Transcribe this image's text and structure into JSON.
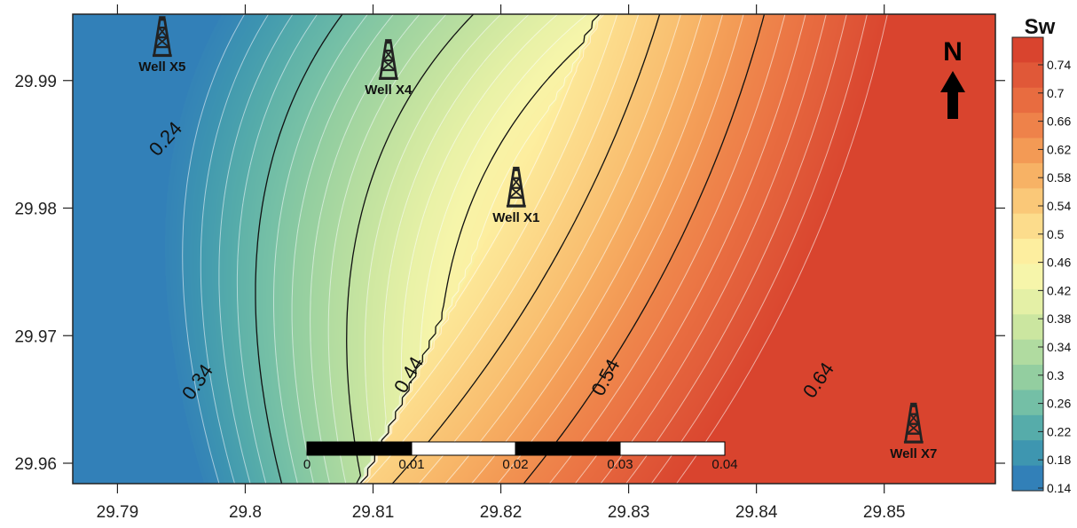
{
  "map": {
    "legend_title": "Sw",
    "north_label": "N",
    "x_ticks": [
      "29.79",
      "29.8",
      "29.81",
      "29.82",
      "29.83",
      "29.84",
      "29.85"
    ],
    "y_ticks": [
      "29.99",
      "29.98",
      "29.97",
      "29.96"
    ],
    "contour_labels": [
      "0.24",
      "0.34",
      "0.44",
      "0.54",
      "0.64"
    ],
    "wells": [
      {
        "name": "Well X5",
        "lon": 29.7935,
        "lat": 29.9915
      },
      {
        "name": "Well X4",
        "lon": 29.8112,
        "lat": 29.9897
      },
      {
        "name": "Well X1",
        "lon": 29.8212,
        "lat": 29.9797
      },
      {
        "name": "Well X7",
        "lon": 29.8523,
        "lat": 29.9612
      }
    ],
    "scale_bar": {
      "labels": [
        "0",
        "0.01",
        "0.02",
        "0.03",
        "0.04"
      ]
    },
    "colorbar": {
      "labels": [
        "0.74",
        "0.7",
        "0.66",
        "0.62",
        "0.58",
        "0.54",
        "0.5",
        "0.46",
        "0.42",
        "0.38",
        "0.34",
        "0.3",
        "0.26",
        "0.22",
        "0.18",
        "0.14"
      ],
      "colors": [
        "#d9442e",
        "#e05838",
        "#e86c40",
        "#ee824a",
        "#f39a55",
        "#f7b265",
        "#fac878",
        "#fcdc8c",
        "#fdee9f",
        "#f6f5aa",
        "#e4f0a6",
        "#cbe6a0",
        "#b0dba0",
        "#93cea0",
        "#74bfa6",
        "#56acaa",
        "#3e96b0",
        "#3280b8"
      ]
    }
  },
  "chart_data": {
    "type": "heatmap",
    "variable": "Sw",
    "xlim": [
      29.7865,
      29.8587
    ],
    "ylim": [
      29.9584,
      29.9952
    ],
    "x_ticks": [
      29.79,
      29.8,
      29.81,
      29.82,
      29.83,
      29.84,
      29.85
    ],
    "y_ticks": [
      29.96,
      29.97,
      29.98,
      29.99
    ],
    "color_range": [
      0.14,
      0.76
    ],
    "contour_interval": 0.02,
    "labeled_contours": [
      0.24,
      0.34,
      0.44,
      0.54,
      0.64
    ],
    "colorbar_labels": [
      0.74,
      0.7,
      0.66,
      0.62,
      0.58,
      0.54,
      0.5,
      0.46,
      0.42,
      0.38,
      0.34,
      0.3,
      0.26,
      0.22,
      0.18,
      0.14
    ],
    "wells": [
      {
        "name": "Well X5",
        "x": 29.7935,
        "y": 29.9915
      },
      {
        "name": "Well X4",
        "x": 29.8112,
        "y": 29.9897
      },
      {
        "name": "Well X1",
        "x": 29.8212,
        "y": 29.9797
      },
      {
        "name": "Well X7",
        "x": 29.8523,
        "y": 29.9612
      }
    ]
  }
}
